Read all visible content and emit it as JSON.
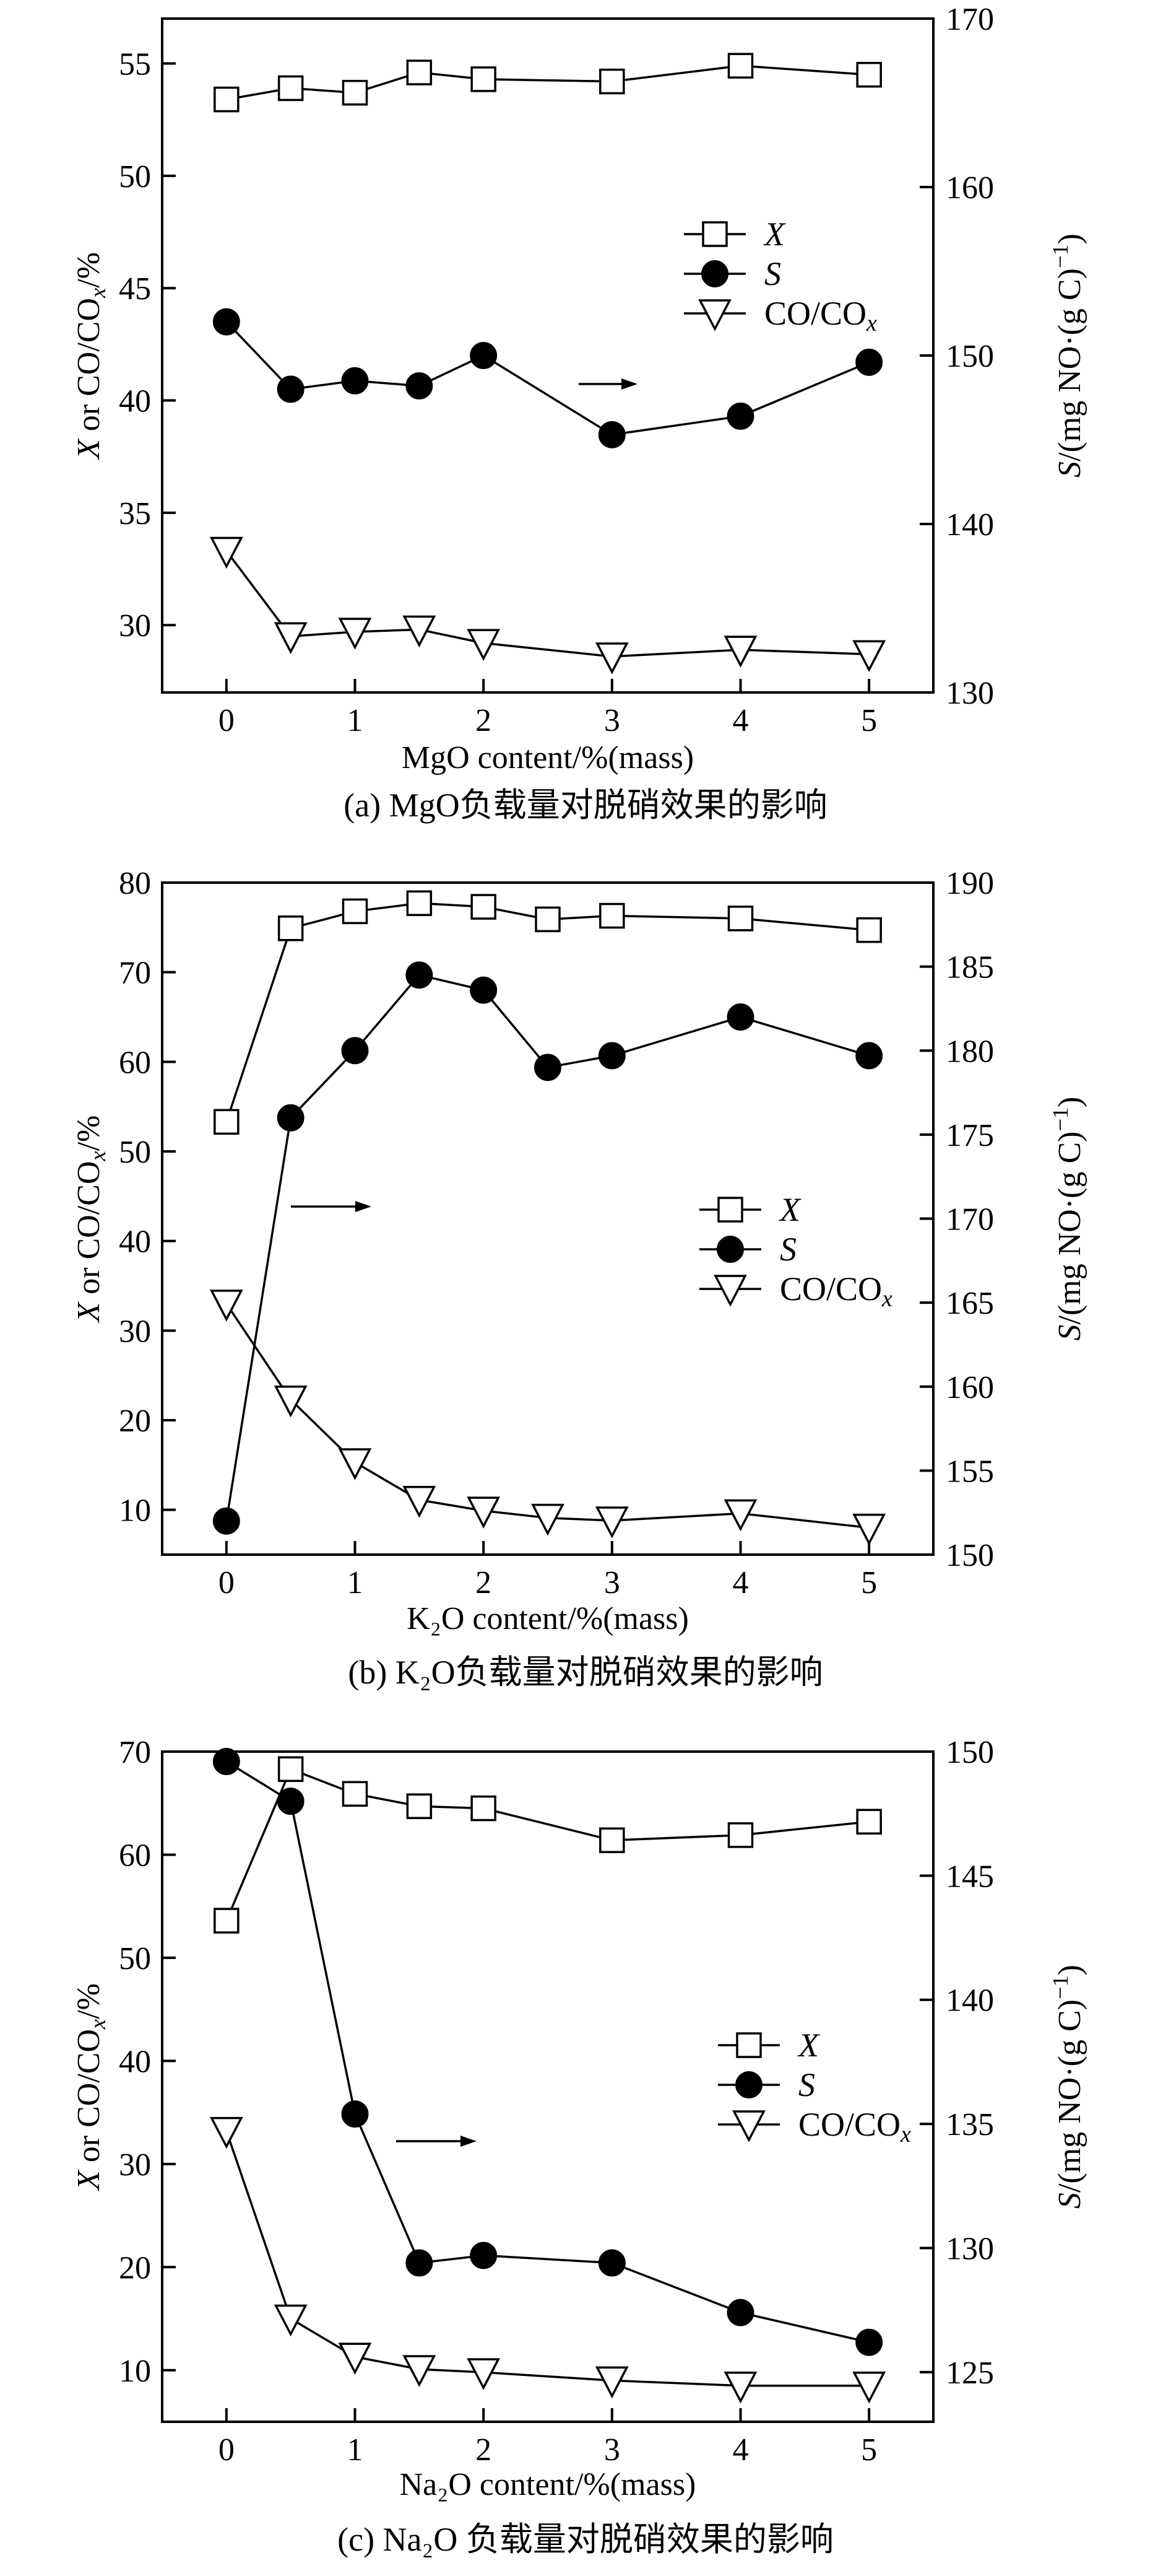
{
  "chart_data": [
    {
      "type": "line",
      "caption": "(a) MgO负载量对脱硝效果的影响",
      "xlabel": "MgO content/%(mass)",
      "ylabel": "X or CO/CO_x/%",
      "y2label": "S/(mg NO·(g C)^−1)",
      "xlim": [
        -0.5,
        5.5
      ],
      "xticks": [
        0,
        1,
        2,
        3,
        4,
        5
      ],
      "ylim": [
        27,
        57
      ],
      "yticks": [
        30,
        35,
        40,
        45,
        50,
        55
      ],
      "y2lim": [
        130,
        170
      ],
      "y2ticks": [
        130,
        140,
        150,
        160,
        170
      ],
      "legend": {
        "position": "middle-right",
        "entries": [
          "X",
          "S",
          "CO/CO_x"
        ]
      },
      "annotation_arrow": "right",
      "series": [
        {
          "name": "X",
          "axis": "left",
          "marker": "open-square",
          "x": [
            0,
            0.5,
            1,
            1.5,
            2,
            3,
            4,
            5
          ],
          "y": [
            53.4,
            53.9,
            53.7,
            54.6,
            54.3,
            54.2,
            54.9,
            54.5
          ]
        },
        {
          "name": "S",
          "axis": "right",
          "marker": "filled-circle",
          "x": [
            0,
            0.5,
            1,
            1.5,
            2,
            3,
            4,
            5
          ],
          "y": [
            152.0,
            148.0,
            148.5,
            148.2,
            150.0,
            145.3,
            146.4,
            149.6
          ]
        },
        {
          "name": "CO/CO_x",
          "axis": "left",
          "marker": "open-triangle-down",
          "x": [
            0,
            0.5,
            1,
            1.5,
            2,
            3,
            4,
            5
          ],
          "y": [
            33.3,
            29.5,
            29.7,
            29.8,
            29.2,
            28.6,
            28.9,
            28.7
          ]
        }
      ]
    },
    {
      "type": "line",
      "caption": "(b) K₂O负载量对脱硝效果的影响",
      "xlabel": "K₂O content/%(mass)",
      "ylabel": "X or CO/CO_x/%",
      "y2label": "S/(mg NO·(g C)^−1)",
      "xlim": [
        -0.5,
        5.5
      ],
      "xticks": [
        0,
        1,
        2,
        3,
        4,
        5
      ],
      "ylim": [
        5,
        80
      ],
      "yticks": [
        10,
        20,
        30,
        40,
        50,
        60,
        70,
        80
      ],
      "y2lim": [
        150,
        190
      ],
      "y2ticks": [
        150,
        155,
        160,
        165,
        170,
        175,
        180,
        185,
        190
      ],
      "legend": {
        "position": "middle-right",
        "entries": [
          "X",
          "S",
          "CO/CO_x"
        ]
      },
      "annotation_arrow": "right",
      "series": [
        {
          "name": "X",
          "axis": "left",
          "marker": "open-square",
          "x": [
            0,
            0.5,
            1,
            1.5,
            2,
            2.5,
            3,
            4,
            5
          ],
          "y": [
            53.3,
            74.9,
            76.8,
            77.7,
            77.3,
            75.9,
            76.3,
            76.0,
            74.7
          ]
        },
        {
          "name": "S",
          "axis": "right",
          "marker": "filled-circle",
          "x": [
            0,
            0.5,
            1,
            1.5,
            2,
            2.5,
            3,
            4,
            5
          ],
          "y": [
            152.0,
            176.0,
            180.0,
            184.5,
            183.6,
            179.0,
            179.7,
            182.0,
            179.7
          ]
        },
        {
          "name": "CO/CO_x",
          "axis": "left",
          "marker": "open-triangle-down",
          "x": [
            0,
            0.5,
            1,
            1.5,
            2,
            2.5,
            3,
            4,
            5
          ],
          "y": [
            33.0,
            22.3,
            15.3,
            11.1,
            9.9,
            9.1,
            8.8,
            9.6,
            8.0
          ]
        }
      ]
    },
    {
      "type": "line",
      "caption": "(c) Na₂O 负载量对脱硝效果的影响",
      "xlabel": "Na₂O content/%(mass)",
      "ylabel": "X or CO/CO_x/%",
      "y2label": "S/(mg NO·(g C)^−1)",
      "xlim": [
        -0.5,
        5.5
      ],
      "xticks": [
        0,
        1,
        2,
        3,
        4,
        5
      ],
      "ylim": [
        5,
        70
      ],
      "yticks": [
        10,
        20,
        30,
        40,
        50,
        60,
        70
      ],
      "y2lim": [
        123,
        150
      ],
      "y2ticks": [
        125,
        130,
        135,
        140,
        145,
        150
      ],
      "legend": {
        "position": "middle-right",
        "entries": [
          "X",
          "S",
          "CO/CO_x"
        ]
      },
      "annotation_arrow": "right",
      "series": [
        {
          "name": "X",
          "axis": "left",
          "marker": "open-square",
          "x": [
            0,
            0.5,
            1,
            1.5,
            2,
            3,
            4,
            5
          ],
          "y": [
            53.6,
            68.3,
            65.9,
            64.7,
            64.5,
            61.4,
            61.9,
            63.2
          ]
        },
        {
          "name": "S",
          "axis": "right",
          "marker": "filled-circle",
          "x": [
            0,
            0.5,
            1,
            1.5,
            2,
            3,
            4,
            5
          ],
          "y": [
            149.6,
            148.0,
            135.4,
            129.4,
            129.7,
            129.4,
            127.4,
            126.2
          ]
        },
        {
          "name": "CO/CO_x",
          "axis": "left",
          "marker": "open-triangle-down",
          "x": [
            0,
            0.5,
            1,
            1.5,
            2,
            3,
            4,
            5
          ],
          "y": [
            33.2,
            15.0,
            11.3,
            10.1,
            9.8,
            9.0,
            8.5,
            8.5
          ]
        }
      ]
    }
  ]
}
